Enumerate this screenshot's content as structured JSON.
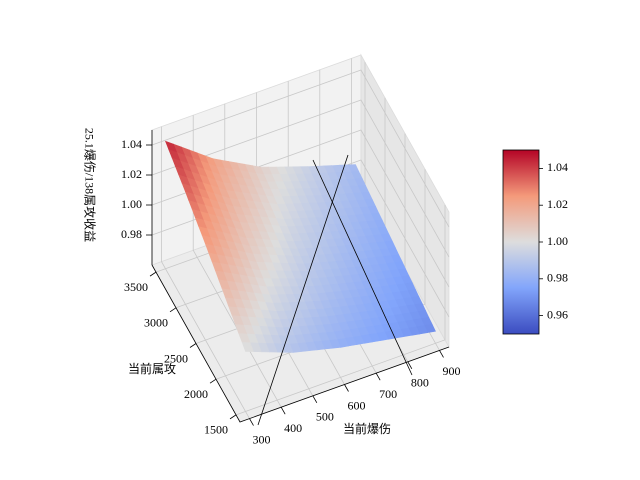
{
  "chart_data": {
    "type": "surface",
    "xlabel": "当前爆伤",
    "ylabel": "当前属攻",
    "zlabel": "25.1爆伤/138属攻收益",
    "x": [
      300,
      450,
      600,
      750,
      900
    ],
    "y": [
      1500,
      2000,
      2500,
      3000,
      3500
    ],
    "z": [
      [
        1.0,
        1.012,
        1.024,
        1.035,
        1.045
      ],
      [
        0.988,
        0.997,
        1.006,
        1.014,
        1.022
      ],
      [
        0.98,
        0.987,
        0.993,
        0.999,
        1.005
      ],
      [
        0.974,
        0.979,
        0.984,
        0.989,
        0.994
      ],
      [
        0.968,
        0.972,
        0.976,
        0.98,
        0.984
      ]
    ],
    "xlim": [
      270,
      930
    ],
    "ylim": [
      1400,
      3600
    ],
    "zlim": [
      0.96,
      1.05
    ],
    "xticks": [
      300,
      400,
      500,
      600,
      700,
      800,
      900
    ],
    "yticks": [
      1500,
      2000,
      2500,
      3000,
      3500
    ],
    "zticks": [
      0.98,
      {
        "value": 1,
        "label": "1.00"
      },
      1.02,
      1.04
    ],
    "colormap": [
      "#3b4cc0",
      "#82a5fb",
      "#dddddd",
      "#f49a7b",
      "#b40426"
    ],
    "colorbar": {
      "clim": [
        0.95,
        1.05
      ],
      "ticks": [
        0.96,
        0.98,
        {
          "value": 1,
          "label": "1.00"
        },
        1.02,
        1.04
      ]
    },
    "grid": true
  }
}
